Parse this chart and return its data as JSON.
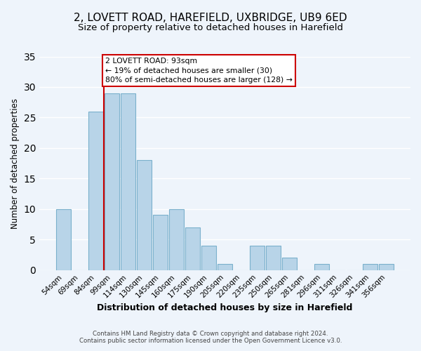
{
  "title": "2, LOVETT ROAD, HAREFIELD, UXBRIDGE, UB9 6ED",
  "subtitle": "Size of property relative to detached houses in Harefield",
  "xlabel": "Distribution of detached houses by size in Harefield",
  "ylabel": "Number of detached properties",
  "bar_labels": [
    "54sqm",
    "69sqm",
    "84sqm",
    "99sqm",
    "114sqm",
    "130sqm",
    "145sqm",
    "160sqm",
    "175sqm",
    "190sqm",
    "205sqm",
    "220sqm",
    "235sqm",
    "250sqm",
    "265sqm",
    "281sqm",
    "296sqm",
    "311sqm",
    "326sqm",
    "341sqm",
    "356sqm"
  ],
  "bar_values": [
    10,
    0,
    26,
    29,
    29,
    18,
    9,
    10,
    7,
    4,
    1,
    0,
    4,
    4,
    2,
    0,
    1,
    0,
    0,
    1,
    1
  ],
  "bar_color": "#b8d4e8",
  "bar_edge_color": "#7ab0cc",
  "ylim": [
    0,
    35
  ],
  "yticks": [
    0,
    5,
    10,
    15,
    20,
    25,
    30,
    35
  ],
  "annotation_title": "2 LOVETT ROAD: 93sqm",
  "annotation_line1": "← 19% of detached houses are smaller (30)",
  "annotation_line2": "80% of semi-detached houses are larger (128) →",
  "annotation_box_color": "#ffffff",
  "annotation_border_color": "#cc0000",
  "vline_color": "#cc0000",
  "footer1": "Contains HM Land Registry data © Crown copyright and database right 2024.",
  "footer2": "Contains public sector information licensed under the Open Government Licence v3.0.",
  "background_color": "#eef4fb",
  "grid_color": "#ffffff",
  "title_fontsize": 11,
  "subtitle_fontsize": 9.5
}
